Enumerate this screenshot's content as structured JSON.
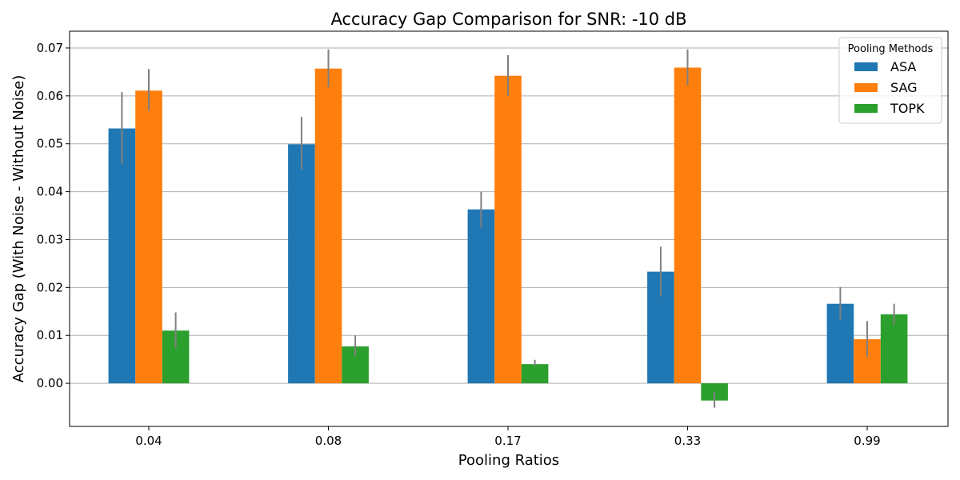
{
  "chart_data": {
    "type": "bar",
    "title": "Accuracy Gap Comparison for SNR: -10 dB",
    "xlabel": "Pooling Ratios",
    "ylabel": "Accuracy Gap (With Noise - Without Noise)",
    "categories": [
      "0.04",
      "0.08",
      "0.17",
      "0.33",
      "0.99"
    ],
    "ylim": [
      -0.009,
      0.0735
    ],
    "yticks": [
      0.0,
      0.01,
      0.02,
      0.03,
      0.04,
      0.05,
      0.06,
      0.07
    ],
    "ytick_labels": [
      "0.00",
      "0.01",
      "0.02",
      "0.03",
      "0.04",
      "0.05",
      "0.06",
      "0.07"
    ],
    "grid": "horizontal",
    "legend": {
      "title": "Pooling Methods",
      "position": "top-right"
    },
    "series": [
      {
        "name": "ASA",
        "color": "#1f77b4",
        "values": [
          0.0532,
          0.0499,
          0.0363,
          0.0233,
          0.0166
        ],
        "err_low": [
          0.0458,
          0.0446,
          0.0325,
          0.0182,
          0.0133
        ],
        "err_high": [
          0.0608,
          0.0556,
          0.04,
          0.0285,
          0.0201
        ]
      },
      {
        "name": "SAG",
        "color": "#ff7f0e",
        "values": [
          0.0611,
          0.0657,
          0.0642,
          0.0659,
          0.0092
        ],
        "err_low": [
          0.0569,
          0.0618,
          0.0599,
          0.0622,
          0.0055
        ],
        "err_high": [
          0.0656,
          0.0697,
          0.0685,
          0.0697,
          0.013
        ]
      },
      {
        "name": "TOPK",
        "color": "#2ca02c",
        "values": [
          0.011,
          0.0077,
          0.004,
          -0.0036,
          0.0144
        ],
        "err_low": [
          0.0073,
          0.0057,
          0.0036,
          -0.0051,
          0.0122
        ],
        "err_high": [
          0.0148,
          0.01,
          0.0049,
          -0.0018,
          0.0166
        ]
      }
    ],
    "error_bar_color": "#808080"
  }
}
